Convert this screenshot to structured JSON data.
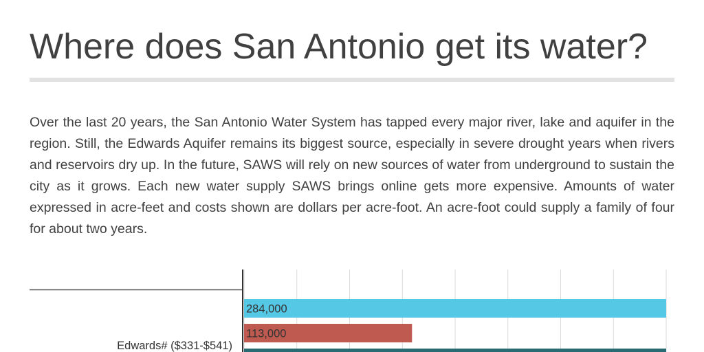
{
  "header": {
    "title": "Where does San Antonio get its water?"
  },
  "intro": {
    "text": "Over the last 20 years, the San Antonio Water System has tapped every major river, lake and aquifer in the region. Still, the Edwards Aquifer remains its biggest source, especially in severe drought years when rivers and reservoirs dry up. In the future, SAWS will rely on new sources of water from underground to sustain the city as it grows. Each new water supply SAWS brings online gets more expensive. Amounts of water expressed in acre-feet and costs shown are dollars per acre-foot. An acre-foot could supply a family of four for about two years."
  },
  "chart_data": {
    "type": "bar",
    "orientation": "horizontal",
    "categories": [
      "Edwards# ($331-$541)"
    ],
    "series": [
      {
        "values": [
          284000
        ],
        "labels": [
          "284,000"
        ],
        "color": "#55c8e6"
      },
      {
        "values": [
          113000
        ],
        "labels": [
          "113,000"
        ],
        "color": "#be5a50"
      },
      {
        "values": [
          null
        ],
        "labels": [
          ""
        ],
        "color": "#2a6b73"
      }
    ],
    "grid": true,
    "label_color": "#333333"
  }
}
